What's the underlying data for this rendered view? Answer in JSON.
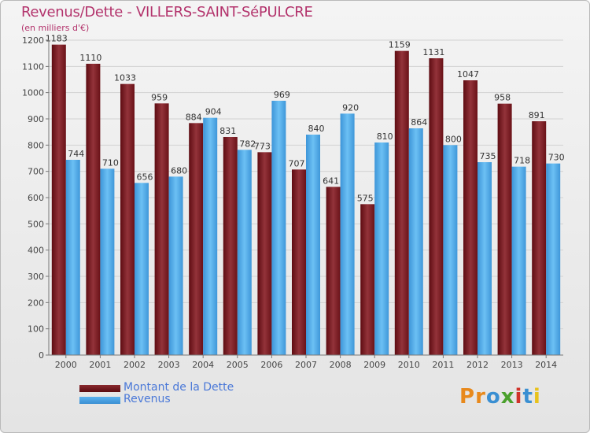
{
  "title": "Revenus/Dette - VILLERS-SAINT-SéPULCRE",
  "subtitle": "(en milliers d'€)",
  "chart_data": {
    "type": "bar",
    "categories": [
      "2000",
      "2001",
      "2002",
      "2003",
      "2004",
      "2005",
      "2006",
      "2007",
      "2008",
      "2009",
      "2010",
      "2011",
      "2012",
      "2013",
      "2014"
    ],
    "series": [
      {
        "name": "Montant de la Dette",
        "color": "#7a1c22",
        "values": [
          1183,
          1110,
          1033,
          959,
          884,
          831,
          773,
          707,
          641,
          575,
          1159,
          1131,
          1047,
          958,
          891
        ]
      },
      {
        "name": "Revenus",
        "color": "#4aa3e6",
        "values": [
          744,
          710,
          656,
          680,
          904,
          782,
          969,
          840,
          920,
          810,
          864,
          800,
          735,
          718,
          730
        ]
      }
    ],
    "ylim": [
      0,
      1200
    ],
    "yticks": [
      0,
      100,
      200,
      300,
      400,
      500,
      600,
      700,
      800,
      900,
      1000,
      1100,
      1200
    ],
    "grid": true,
    "xlabel": "",
    "ylabel": ""
  },
  "legend": {
    "debt_label": "Montant de la Dette",
    "revenue_label": "Revenus"
  },
  "logo": {
    "letters": [
      "P",
      "r",
      "o",
      "x",
      "i",
      "t",
      "i"
    ],
    "colors": [
      "#e8891c",
      "#e8891c",
      "#3a8fd2",
      "#4aa02c",
      "#d0322a",
      "#3a8fd2",
      "#e8c21c"
    ]
  }
}
